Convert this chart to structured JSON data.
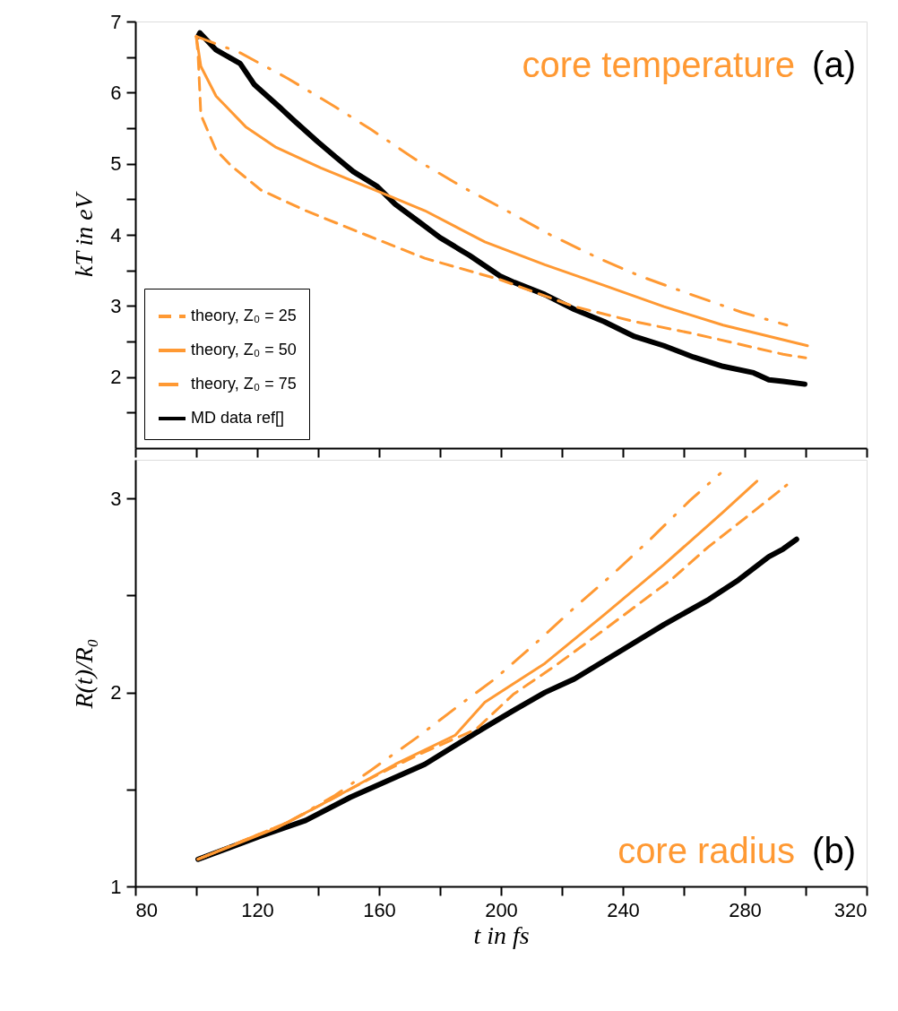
{
  "chart_data": [
    {
      "type": "line",
      "ylabel": "kT in eV",
      "annotations": [
        "core temperature",
        "(a)"
      ],
      "xlim": [
        80,
        320
      ],
      "ylim": [
        1,
        7
      ],
      "xticks": [
        80,
        {
          "value": 100,
          "label": null
        },
        120,
        {
          "value": 140,
          "label": null
        },
        160,
        {
          "value": 180,
          "label": null
        },
        200,
        {
          "value": 220,
          "label": null
        },
        240,
        {
          "value": 260,
          "label": null
        },
        280,
        {
          "value": 300,
          "label": null
        },
        320
      ],
      "yticks": [
        {
          "value": 1.5,
          "label": null
        },
        2,
        {
          "value": 2.5,
          "label": null
        },
        3,
        {
          "value": 3.5,
          "label": null
        },
        4,
        {
          "value": 4.5,
          "label": null
        },
        5,
        {
          "value": 5.5,
          "label": null
        },
        6,
        {
          "value": 6.5,
          "label": null
        },
        7
      ],
      "tick_labels": "y",
      "grid": false,
      "legend": "bottom left",
      "marker": "none",
      "series": [
        {
          "name": "theory, Z₀ = 25",
          "color": "#ff9933",
          "line_style": "dashed",
          "x": [
            100,
            100.6,
            101.5,
            106.5,
            111.5,
            121.2,
            135.9,
            155.6,
            175,
            199.7,
            224.1,
            243.8,
            263.2,
            292.6,
            300
          ],
          "values": [
            6.79,
            6.53,
            5.69,
            5.19,
            4.97,
            4.63,
            4.34,
            4.0,
            3.67,
            3.37,
            2.99,
            2.78,
            2.61,
            2.32,
            2.27
          ]
        },
        {
          "name": "theory, Z₀ = 50",
          "color": "#ff9933",
          "line_style": "solid",
          "x": [
            100,
            101.5,
            106.5,
            116.2,
            126.2,
            140.9,
            160.3,
            175,
            194.7,
            214.4,
            233.8,
            253.5,
            272.9,
            300.6
          ],
          "values": [
            6.79,
            6.37,
            5.95,
            5.52,
            5.23,
            4.94,
            4.6,
            4.34,
            3.9,
            3.58,
            3.29,
            2.99,
            2.73,
            2.44
          ]
        },
        {
          "name": "theory, Z₀ = 75",
          "color": "#ff9933",
          "line_style": "dashdot",
          "x": [
            100,
            114.4,
            130,
            145.6,
            157.4,
            172,
            187.9,
            200.6,
            216.2,
            232.1,
            245.6,
            262.4,
            279.1,
            293.8
          ],
          "values": [
            6.79,
            6.56,
            6.2,
            5.8,
            5.48,
            5.06,
            4.66,
            4.37,
            4.0,
            3.67,
            3.42,
            3.16,
            2.91,
            2.73
          ]
        },
        {
          "name": "MD data ref[]",
          "color": "#000000",
          "line_style": "solid",
          "x": [
            100.6,
            101.2,
            106.5,
            114.4,
            119.1,
            128,
            132,
            139.8,
            145.6,
            151.5,
            159.4,
            165.3,
            173.2,
            180,
            189.7,
            199.7,
            204.4,
            214.4,
            224.1,
            233.8,
            243.8,
            253.5,
            263.2,
            272.9,
            282.9,
            287.9,
            292.6,
            299.7
          ],
          "values": [
            6.79,
            6.84,
            6.6,
            6.41,
            6.11,
            5.77,
            5.61,
            5.31,
            5.1,
            4.89,
            4.68,
            4.43,
            4.18,
            3.96,
            3.71,
            3.42,
            3.33,
            3.16,
            2.95,
            2.78,
            2.57,
            2.44,
            2.28,
            2.15,
            2.06,
            1.96,
            1.94,
            1.9
          ]
        }
      ]
    },
    {
      "type": "line",
      "xlabel": "t in fs",
      "ylabel": "R(t)/R₀",
      "annotations": [
        "core radius",
        "(b)"
      ],
      "xlim": [
        80,
        320
      ],
      "ylim": [
        1,
        3.2
      ],
      "xticks": [
        80,
        {
          "value": 100,
          "label": null
        },
        120,
        {
          "value": 140,
          "label": null
        },
        160,
        {
          "value": 180,
          "label": null
        },
        200,
        {
          "value": 220,
          "label": null
        },
        240,
        {
          "value": 260,
          "label": null
        },
        280,
        {
          "value": 300,
          "label": null
        },
        320
      ],
      "yticks": [
        1,
        {
          "value": 1.5,
          "label": null
        },
        2,
        {
          "value": 2.5,
          "label": null
        },
        3
      ],
      "grid": false,
      "legend": false,
      "marker": "none",
      "series": [
        {
          "color": "#ff9933",
          "line_style": "dashed",
          "x": [
            100.6,
            130,
            145.6,
            160,
            173,
            191.8,
            204,
            218,
            231,
            243.8,
            256.5,
            268,
            281,
            293.8
          ],
          "values": [
            1.14,
            1.33,
            1.46,
            1.58,
            1.68,
            1.81,
            1.99,
            2.14,
            2.29,
            2.44,
            2.59,
            2.75,
            2.91,
            3.07
          ]
        },
        {
          "color": "#ff9933",
          "line_style": "solid",
          "x": [
            100.6,
            126.2,
            145.6,
            165.3,
            185,
            194.7,
            214.4,
            233.8,
            253.5,
            272.9,
            284
          ],
          "values": [
            1.14,
            1.3,
            1.46,
            1.63,
            1.78,
            1.95,
            2.15,
            2.4,
            2.66,
            2.93,
            3.09
          ]
        },
        {
          "color": "#ff9933",
          "line_style": "dashdot",
          "x": [
            100.6,
            130,
            145.6,
            157.4,
            172.6,
            186.8,
            198,
            211.8,
            225,
            236,
            249,
            262,
            272
          ],
          "values": [
            1.14,
            1.33,
            1.47,
            1.6,
            1.77,
            1.94,
            2.07,
            2.26,
            2.45,
            2.6,
            2.79,
            2.99,
            3.13
          ]
        },
        {
          "color": "#000000",
          "line_style": "solid",
          "x": [
            100.6,
            121.2,
            135.9,
            150.6,
            175,
            194.7,
            204.4,
            214.4,
            224.1,
            238.8,
            253.5,
            268.2,
            277.9,
            287.9,
            292.6,
            297
          ],
          "values": [
            1.14,
            1.26,
            1.34,
            1.46,
            1.63,
            1.82,
            1.91,
            2.0,
            2.07,
            2.21,
            2.35,
            2.48,
            2.58,
            2.7,
            2.74,
            2.79
          ]
        }
      ]
    }
  ]
}
